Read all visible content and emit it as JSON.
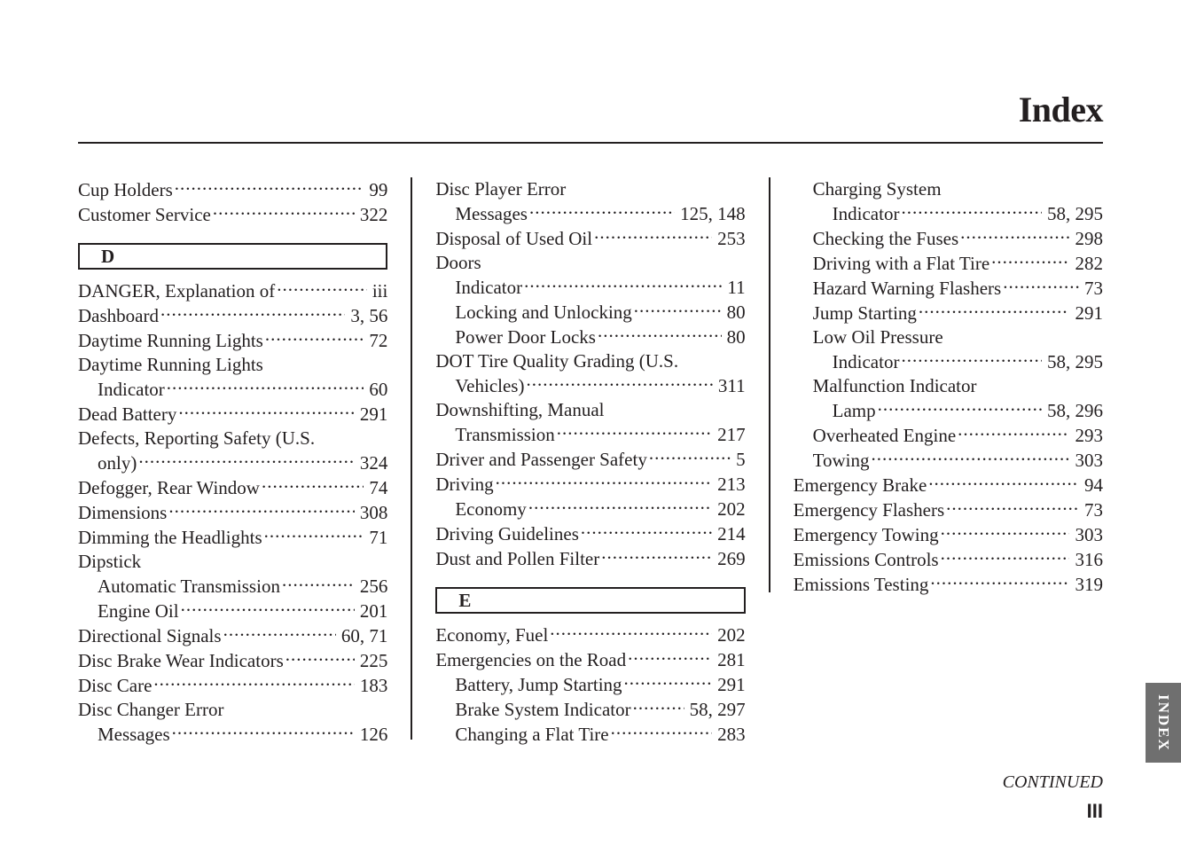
{
  "title": "Index",
  "side_tab": "INDEX",
  "continued": "CONTINUED",
  "page_number": "III",
  "columns": [
    {
      "id": "col1",
      "items": [
        {
          "type": "entry",
          "label": "Cup Holders",
          "page": "99"
        },
        {
          "type": "entry",
          "label": "Customer Service",
          "page": "322"
        },
        {
          "type": "letter",
          "letter": "D"
        },
        {
          "type": "entry",
          "label": "DANGER, Explanation of",
          "page": "iii"
        },
        {
          "type": "entry",
          "label": "Dashboard",
          "page": "3, 56"
        },
        {
          "type": "entry",
          "label": "Daytime Running Lights",
          "page": "72"
        },
        {
          "type": "entry",
          "label": "Daytime Running Lights",
          "page": "",
          "noleader": true
        },
        {
          "type": "entry",
          "sub": true,
          "label": "Indicator",
          "page": "60"
        },
        {
          "type": "entry",
          "label": "Dead Battery",
          "page": "291"
        },
        {
          "type": "entry",
          "label": "Defects, Reporting Safety (U.S.",
          "page": "",
          "noleader": true
        },
        {
          "type": "entry",
          "sub": true,
          "label": "only)",
          "page": "324"
        },
        {
          "type": "entry",
          "label": "Defogger, Rear Window",
          "page": "74"
        },
        {
          "type": "entry",
          "label": "Dimensions",
          "page": "308"
        },
        {
          "type": "entry",
          "label": "Dimming the Headlights",
          "page": "71"
        },
        {
          "type": "entry",
          "label": "Dipstick",
          "page": "",
          "noleader": true
        },
        {
          "type": "entry",
          "sub": true,
          "label": "Automatic Transmission",
          "page": "256"
        },
        {
          "type": "entry",
          "sub": true,
          "label": "Engine Oil",
          "page": "201"
        },
        {
          "type": "entry",
          "label": "Directional Signals",
          "page": "60, 71"
        },
        {
          "type": "entry",
          "label": "Disc Brake Wear Indicators",
          "page": "225"
        },
        {
          "type": "entry",
          "label": "Disc Care",
          "page": "183"
        },
        {
          "type": "entry",
          "label": "Disc Changer Error",
          "page": "",
          "noleader": true
        },
        {
          "type": "entry",
          "sub": true,
          "label": "Messages",
          "page": "126"
        }
      ]
    },
    {
      "id": "col2",
      "items": [
        {
          "type": "entry",
          "label": "Disc Player Error",
          "page": "",
          "noleader": true
        },
        {
          "type": "entry",
          "sub": true,
          "label": "Messages",
          "page": "125, 148"
        },
        {
          "type": "entry",
          "label": "Disposal of Used Oil",
          "page": "253"
        },
        {
          "type": "entry",
          "label": "Doors",
          "page": "",
          "noleader": true
        },
        {
          "type": "entry",
          "sub": true,
          "label": "Indicator",
          "page": "11"
        },
        {
          "type": "entry",
          "sub": true,
          "label": "Locking and Unlocking",
          "page": "80"
        },
        {
          "type": "entry",
          "sub": true,
          "label": "Power Door Locks",
          "page": "80"
        },
        {
          "type": "entry",
          "label": "DOT Tire Quality Grading (U.S.",
          "page": "",
          "noleader": true
        },
        {
          "type": "entry",
          "sub": true,
          "label": "Vehicles)",
          "page": "311"
        },
        {
          "type": "entry",
          "label": "Downshifting, Manual",
          "page": "",
          "noleader": true
        },
        {
          "type": "entry",
          "sub": true,
          "label": "Transmission",
          "page": "217"
        },
        {
          "type": "entry",
          "label": "Driver and Passenger Safety",
          "page": "5"
        },
        {
          "type": "entry",
          "label": "Driving",
          "page": "213"
        },
        {
          "type": "entry",
          "sub": true,
          "label": "Economy",
          "page": "202"
        },
        {
          "type": "entry",
          "label": "Driving Guidelines",
          "page": "214"
        },
        {
          "type": "entry",
          "label": "Dust and Pollen Filter",
          "page": "269"
        },
        {
          "type": "letter",
          "letter": "E"
        },
        {
          "type": "entry",
          "label": "Economy, Fuel",
          "page": "202"
        },
        {
          "type": "entry",
          "label": "Emergencies on the Road",
          "page": "281"
        },
        {
          "type": "entry",
          "sub": true,
          "label": "Battery, Jump Starting",
          "page": "291"
        },
        {
          "type": "entry",
          "sub": true,
          "label": "Brake System Indicator",
          "page": "58, 297"
        },
        {
          "type": "entry",
          "sub": true,
          "label": "Changing a Flat Tire",
          "page": "283"
        }
      ]
    },
    {
      "id": "col3",
      "items": [
        {
          "type": "entry",
          "sub": true,
          "label": "Charging System",
          "page": "",
          "noleader": true
        },
        {
          "type": "entry",
          "sub": true,
          "sub2": true,
          "label": "Indicator",
          "page": "58, 295"
        },
        {
          "type": "entry",
          "sub": true,
          "label": "Checking the Fuses",
          "page": "298"
        },
        {
          "type": "entry",
          "sub": true,
          "label": "Driving with a Flat Tire",
          "page": "282"
        },
        {
          "type": "entry",
          "sub": true,
          "label": "Hazard Warning Flashers",
          "page": "73"
        },
        {
          "type": "entry",
          "sub": true,
          "label": "Jump Starting",
          "page": "291"
        },
        {
          "type": "entry",
          "sub": true,
          "label": "Low Oil Pressure",
          "page": "",
          "noleader": true
        },
        {
          "type": "entry",
          "sub": true,
          "sub2": true,
          "label": "Indicator",
          "page": "58, 295"
        },
        {
          "type": "entry",
          "sub": true,
          "label": "Malfunction Indicator",
          "page": "",
          "noleader": true
        },
        {
          "type": "entry",
          "sub": true,
          "sub2": true,
          "label": "Lamp",
          "page": "58, 296"
        },
        {
          "type": "entry",
          "sub": true,
          "label": "Overheated Engine",
          "page": "293"
        },
        {
          "type": "entry",
          "sub": true,
          "label": "Towing",
          "page": "303"
        },
        {
          "type": "entry",
          "label": "Emergency Brake",
          "page": "94"
        },
        {
          "type": "entry",
          "label": "Emergency Flashers",
          "page": "73"
        },
        {
          "type": "entry",
          "label": "Emergency Towing",
          "page": "303"
        },
        {
          "type": "entry",
          "label": "Emissions Controls",
          "page": "316"
        },
        {
          "type": "entry",
          "label": "Emissions Testing",
          "page": "319"
        }
      ]
    }
  ]
}
